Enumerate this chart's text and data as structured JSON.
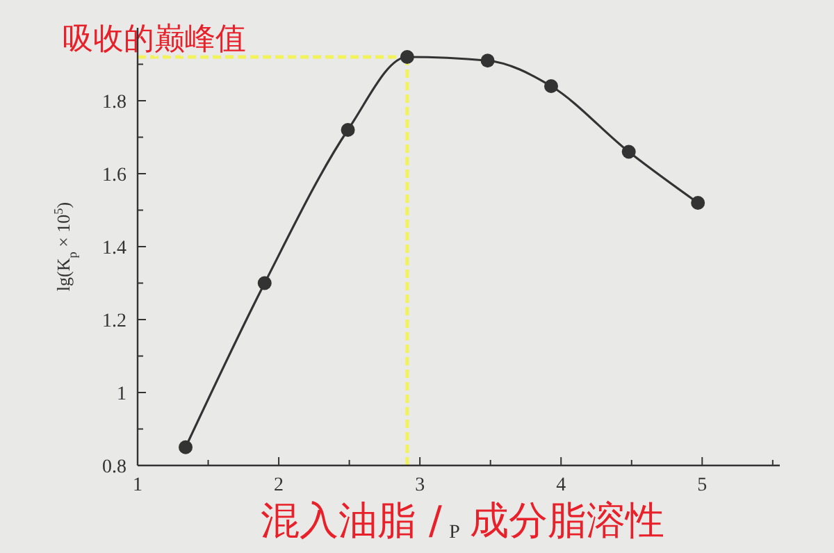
{
  "chart_data": {
    "type": "line",
    "xlabel": "P",
    "ylabel": "lg(K$_{p}$ × 10$^{5}$)",
    "xlim": [
      1,
      5.55
    ],
    "xticks": [
      1,
      {
        "value": 1.5,
        "label": null
      },
      2,
      {
        "value": 2.5,
        "label": null
      },
      3,
      {
        "value": 3.5,
        "label": null
      },
      4,
      {
        "value": 4.5,
        "label": null
      },
      5,
      {
        "value": 5.5,
        "label": null
      }
    ],
    "ylim": [
      0.8,
      2.0
    ],
    "yticks": [
      0.8,
      {
        "value": 0.9,
        "label": null
      },
      1,
      {
        "value": 1.1,
        "label": null
      },
      1.2,
      {
        "value": 1.3,
        "label": null
      },
      1.4,
      {
        "value": 1.5,
        "label": null
      },
      1.6,
      {
        "value": 1.7,
        "label": null
      },
      1.8,
      {
        "value": 1.9,
        "label": null
      }
    ],
    "series": [
      {
        "color": "#333333",
        "x": [
          1.34,
          1.9,
          2.49,
          2.91,
          3.48,
          3.93,
          4.48,
          4.97
        ],
        "values": [
          0.85,
          1.3,
          1.72,
          1.92,
          1.91,
          1.84,
          1.66,
          1.52
        ]
      }
    ],
    "marker": "circle",
    "line_style": "solid",
    "grid": false,
    "ref_lines": [
      {
        "axis": "y",
        "value": 1.92,
        "label": "吸收的巅峰值",
        "color": "#f2f25a",
        "line_style": "dashed"
      },
      {
        "axis": "x",
        "value": 2.91,
        "color": "#f2f25a",
        "line_style": "dashed"
      }
    ],
    "annotations": [
      "混入油脂 /",
      "成分脂溶性"
    ]
  }
}
